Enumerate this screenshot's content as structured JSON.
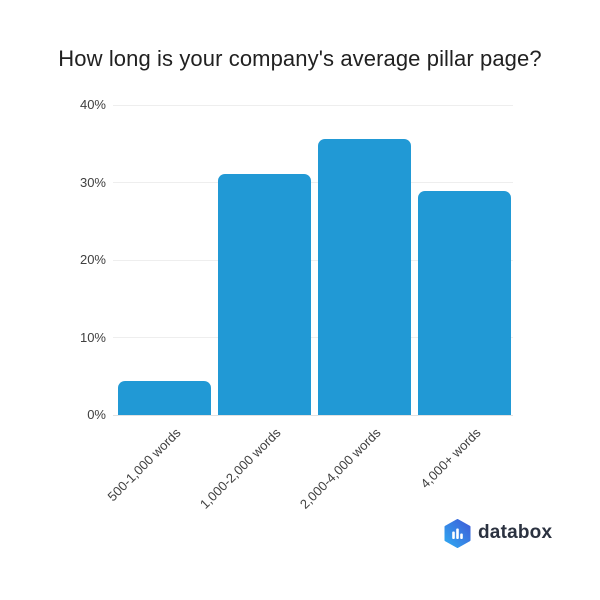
{
  "chart_data": {
    "type": "bar",
    "title": "How long is your company's average pillar page?",
    "categories": [
      "500-1,000 words",
      "1,000-2,000 words",
      "2,000-4,000 words",
      "4,000+ words"
    ],
    "values": [
      4.4,
      31.1,
      35.6,
      28.9
    ],
    "unit": "%",
    "xlabel": "",
    "ylabel": "",
    "ylim": [
      0,
      40
    ],
    "yticks": [
      0,
      10,
      20,
      30,
      40
    ],
    "ytick_labels": [
      "0%",
      "10%",
      "20%",
      "30%",
      "40%"
    ],
    "grid": true,
    "legend_position": "none",
    "bar_color": "#2199d5",
    "label_rotation_deg": -45
  },
  "branding": {
    "logo_text": "databox",
    "logo_icon": "databox-hexagon-bar-chart-icon",
    "logo_text_color": "#2b3240",
    "logo_gradient_top": "#3f5bd7",
    "logo_gradient_bottom": "#2faaf2",
    "logo_bars_color": "#ffffff"
  }
}
